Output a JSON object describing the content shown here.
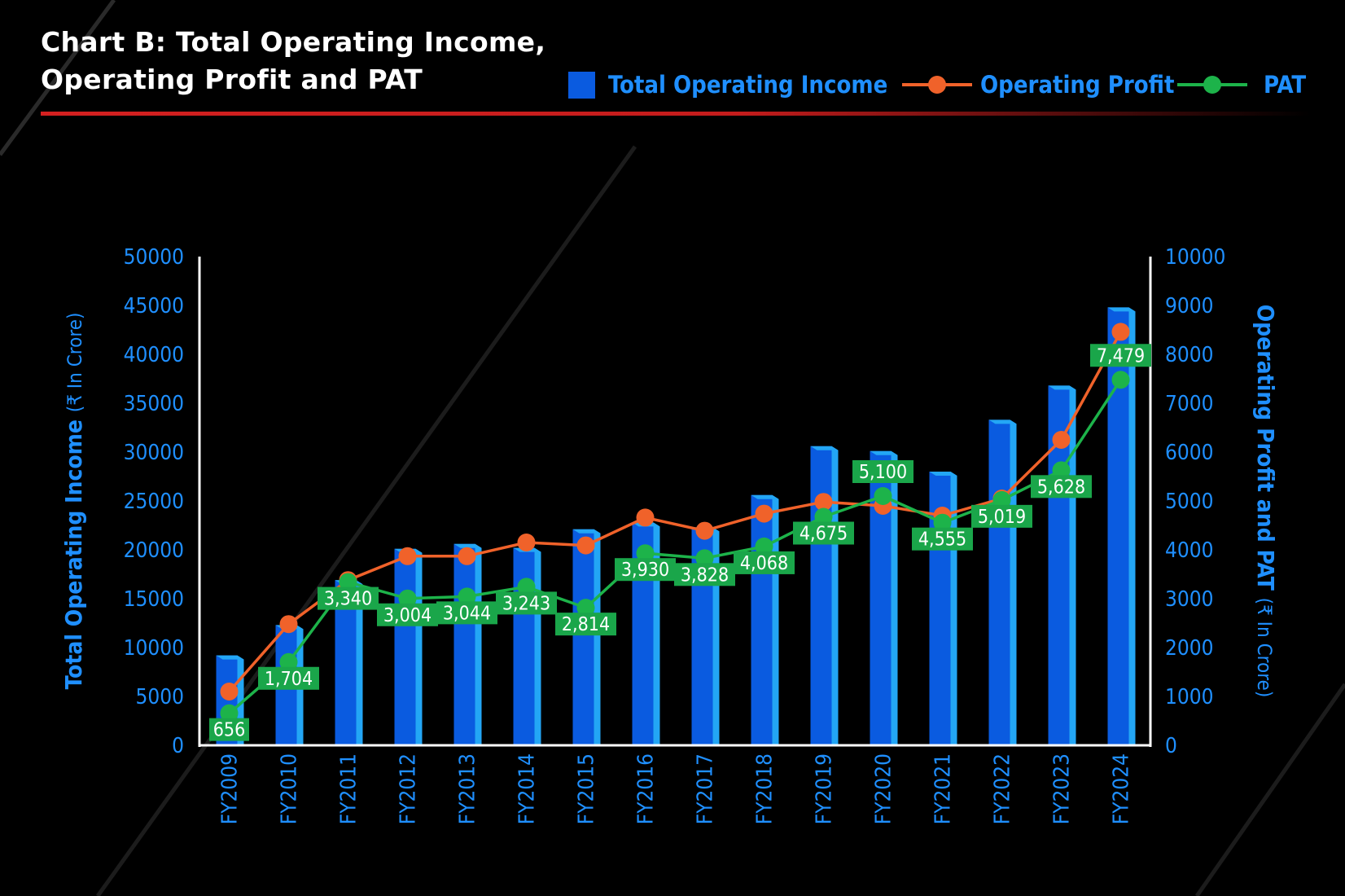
{
  "title_line1": "Chart B: Total Operating Income,",
  "title_line2": "Operating Profit and PAT",
  "colors": {
    "background": "#000000",
    "bar": "#0a5be0",
    "bar_side": "#23a6f5",
    "operating_profit": "#f0622a",
    "pat": "#1db34a",
    "pat_label_bg": "#1aa64a",
    "axis_text": "#1f8fff",
    "rule": "#d42020"
  },
  "legend": {
    "income": "Total Operating Income",
    "operating_profit": "Operating Profit",
    "pat": "PAT"
  },
  "chart_data": {
    "type": "bar",
    "categories": [
      "FY2009",
      "FY2010",
      "FY2011",
      "FY2012",
      "FY2013",
      "FY2014",
      "FY2015",
      "FY2016",
      "FY2017",
      "FY2018",
      "FY2019",
      "FY2020",
      "FY2021",
      "FY2022",
      "FY2023",
      "FY2024"
    ],
    "series": [
      {
        "name": "Total Operating Income",
        "type": "bar",
        "axis": "left",
        "values": [
          9200,
          12300,
          16900,
          20100,
          20600,
          20200,
          22100,
          22800,
          22300,
          25600,
          30600,
          30100,
          28000,
          33300,
          36800,
          44800
        ]
      },
      {
        "name": "Operating Profit",
        "type": "line",
        "axis": "right",
        "values": [
          1100,
          2480,
          3380,
          3870,
          3870,
          4150,
          4090,
          4660,
          4390,
          4740,
          4980,
          4900,
          4700,
          5050,
          6250,
          8460
        ]
      },
      {
        "name": "PAT",
        "type": "line",
        "axis": "right",
        "values": [
          656,
          1704,
          3340,
          3004,
          3044,
          3243,
          2814,
          3930,
          3828,
          4068,
          4675,
          5100,
          4555,
          5019,
          5628,
          7479
        ],
        "data_labels": [
          "656",
          "1,704",
          "3,340",
          "3,004",
          "3,044",
          "3,243",
          "2,814",
          "3,930",
          "3,828",
          "4,068",
          "4,675",
          "5,100",
          "4,555",
          "5,019",
          "5,628",
          "7,479"
        ]
      }
    ],
    "y_left": {
      "label": "Total Operating Income",
      "unit": "(₹ In Crore)",
      "ylim": [
        0,
        50000
      ],
      "ticks": [
        "0",
        "5000",
        "10000",
        "15000",
        "20000",
        "25000",
        "30000",
        "35000",
        "40000",
        "45000",
        "50000"
      ]
    },
    "y_right": {
      "label": "Operating Profit and PAT",
      "unit": "(₹ In Crore)",
      "ylim": [
        0,
        10000
      ],
      "ticks": [
        "0",
        "1000",
        "2000",
        "3000",
        "4000",
        "5000",
        "6000",
        "7000",
        "8000",
        "9000",
        "10000"
      ]
    },
    "grid": false,
    "legend_position": "top-right"
  }
}
